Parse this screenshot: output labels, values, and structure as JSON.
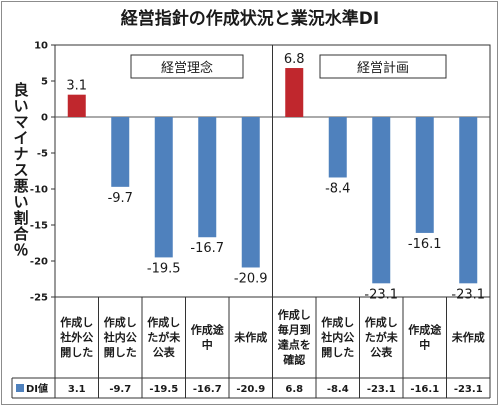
{
  "chart_data": {
    "type": "bar",
    "title": "経営指針の作成状況と業況水準DI",
    "ylabel": "良いマイナス悪い割合％",
    "ylim": [
      -25,
      10
    ],
    "yticks": [
      10,
      5,
      0,
      -5,
      -10,
      -15,
      -20,
      -25
    ],
    "grid": false,
    "groups": [
      {
        "label": "経営理念",
        "range": [
          0,
          4
        ]
      },
      {
        "label": "経営計画",
        "range": [
          5,
          9
        ]
      }
    ],
    "categories": [
      [
        "作成し",
        "社外公",
        "開した"
      ],
      [
        "作成し",
        "社内公",
        "開した"
      ],
      [
        "作成し",
        "たが未",
        "公表"
      ],
      [
        "作成途",
        "中"
      ],
      [
        "未作成"
      ],
      [
        "作成し",
        "毎月到",
        "達点を",
        "確認"
      ],
      [
        "作成し",
        "社内公",
        "開した"
      ],
      [
        "作成し",
        "たが未",
        "公表"
      ],
      [
        "作成途",
        "中"
      ],
      [
        "未作成"
      ]
    ],
    "series": [
      {
        "name": "DI値",
        "values": [
          3.1,
          -9.7,
          -19.5,
          -16.7,
          -20.9,
          6.8,
          -8.4,
          -23.1,
          -16.1,
          -23.1
        ]
      }
    ],
    "value_labels": [
      "3.1",
      "-9.7",
      "-19.5",
      "-16.7",
      "-20.9",
      "6.8",
      "-8.4",
      "-23.1",
      "-16.1",
      "-23.1"
    ],
    "colors": {
      "positive": "#c0272d",
      "negative": "#4f81bd"
    }
  }
}
